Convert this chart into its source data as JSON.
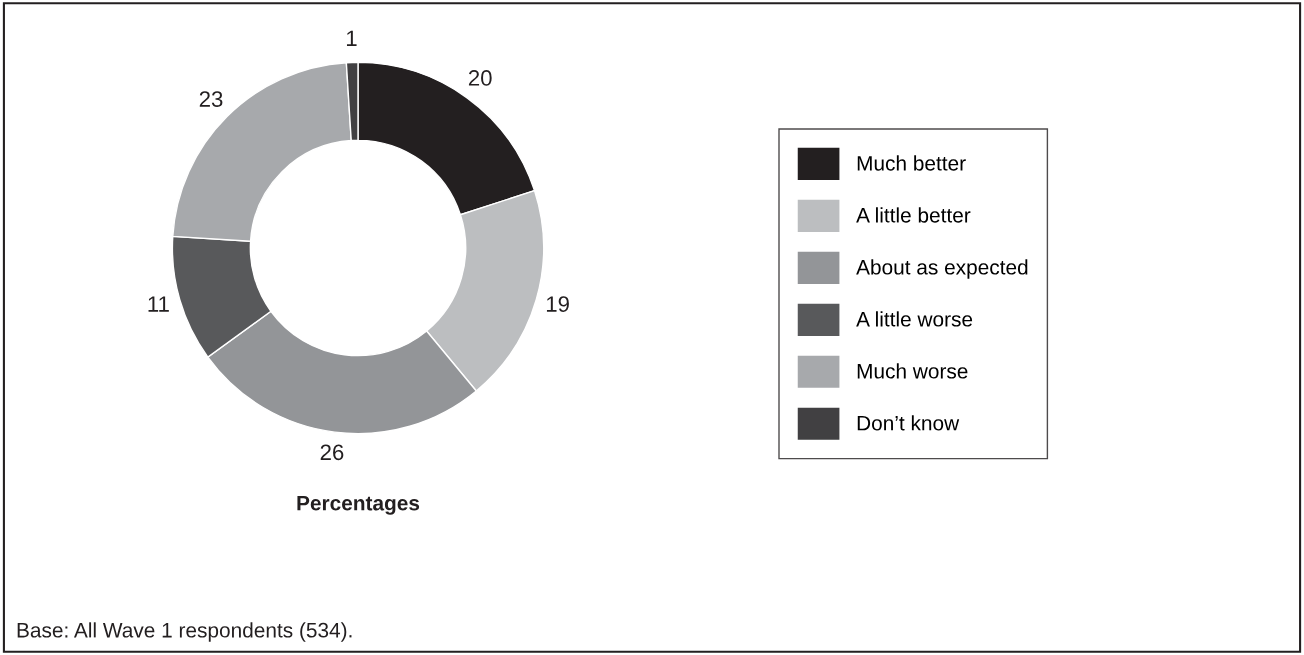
{
  "chart_data": {
    "type": "donut",
    "xlabel": "Percentages",
    "categories": [
      "Much better",
      "A little better",
      "About as expected",
      "A little worse",
      "Much worse",
      "Don’t know"
    ],
    "values": [
      20,
      19,
      26,
      11,
      23,
      1
    ],
    "colors": [
      "#231f20",
      "#bcbec0",
      "#939598",
      "#58595b",
      "#a7a9ac",
      "#414042"
    ],
    "data_labels": true,
    "legend": "right",
    "annotations": [
      "Base: All Wave 1 respondents (534)."
    ]
  }
}
